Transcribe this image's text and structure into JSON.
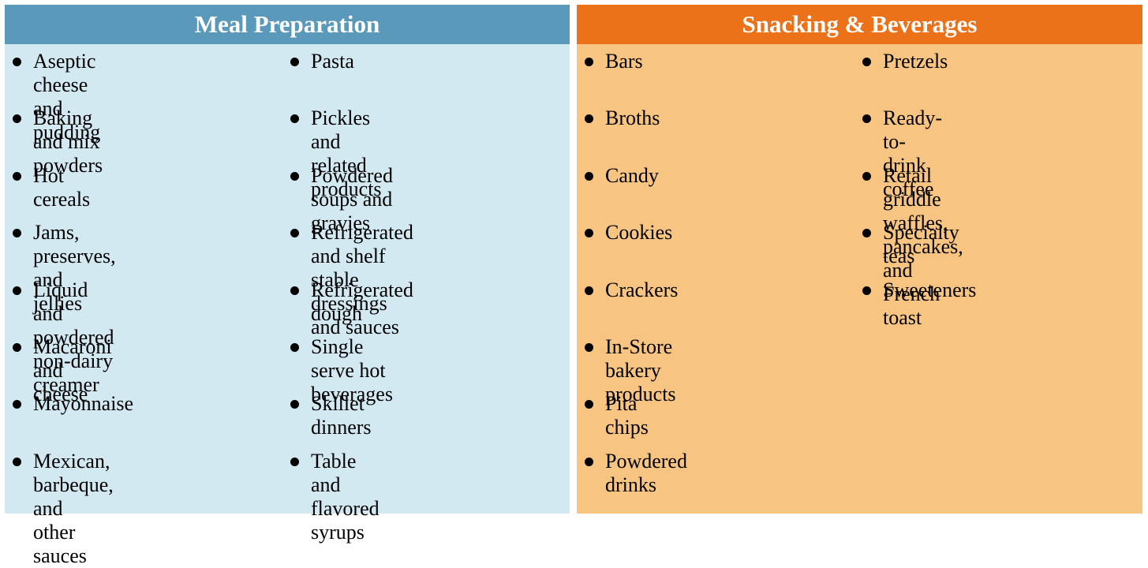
{
  "panels": [
    {
      "title": "Meal Preparation",
      "header_color": "#5a99b9",
      "body_color": "#d3e9f2",
      "columns": [
        [
          "Aseptic cheese and\npudding",
          "Baking and mix powders",
          "Hot cereals",
          "Jams, preserves, and\njellies",
          "Liquid and powdered\nnon-dairy creamer",
          "Macaroni and cheese",
          "Mayonnaise",
          "Mexican, barbeque, and\nother sauces"
        ],
        [
          "Pasta",
          "Pickles and related\nproducts",
          "Powdered soups and\ngravies",
          "Refrigerated and shelf\nstable dressings and sauces",
          "Refrigerated dough",
          "Single serve hot beverages",
          "Skillet dinners",
          "Table and flavored syrups"
        ]
      ]
    },
    {
      "title": "Snacking & Beverages",
      "header_color": "#ec721a",
      "body_color": "#f8c482",
      "columns": [
        [
          "Bars",
          "Broths",
          "Candy",
          "Cookies",
          "Crackers",
          "In-Store bakery products",
          "Pita chips",
          "Powdered drinks"
        ],
        [
          "Pretzels",
          "Ready-to-drink coffee",
          "Retail griddle waffles,\npancakes, and French toast",
          "Specialty teas",
          "Sweeteners"
        ]
      ]
    }
  ]
}
